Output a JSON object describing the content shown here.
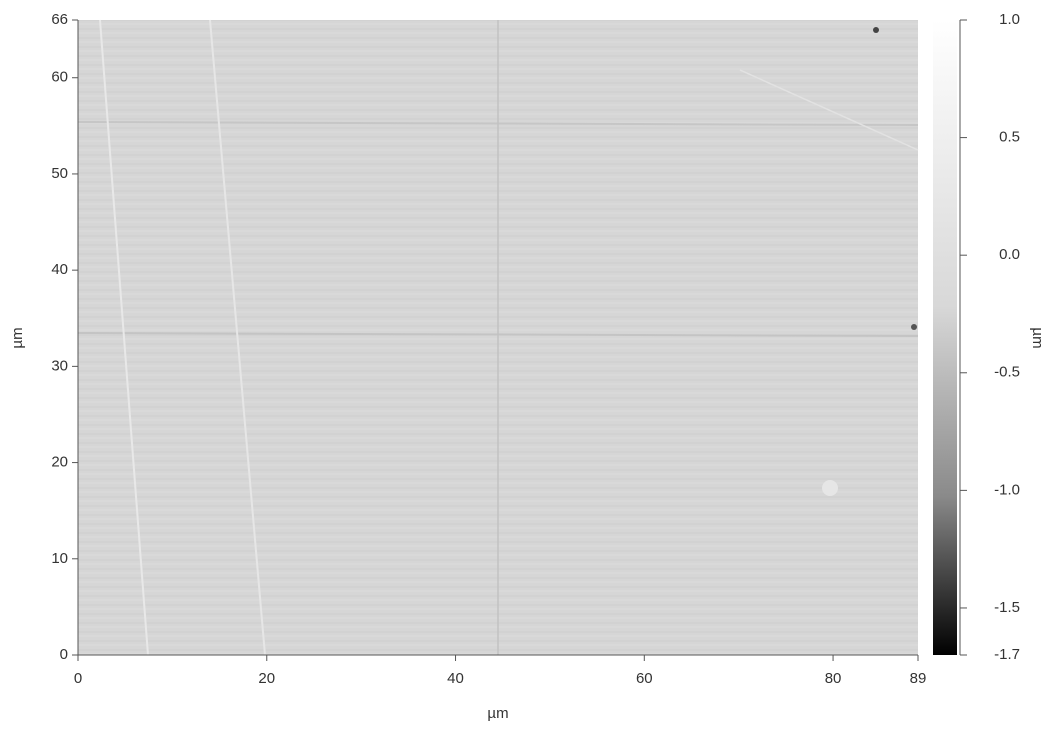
{
  "chart_data": {
    "type": "image",
    "x_label": "µm",
    "y_label": "µm",
    "colorbar_label": "µm",
    "xlim": [
      0,
      89
    ],
    "xticks": [
      0,
      20,
      40,
      60,
      80,
      89
    ],
    "ylim": [
      0,
      66
    ],
    "yticks": [
      0,
      10,
      20,
      30,
      40,
      50,
      60,
      66
    ],
    "clim": [
      -1.7,
      1.0
    ],
    "cticks": [
      {
        "value": 1,
        "label": "1.0"
      },
      0.5,
      {
        "value": 0,
        "label": "0.0"
      },
      -0.5,
      {
        "value": -1,
        "label": "-1.0"
      },
      -1.5,
      -1.7
    ]
  }
}
